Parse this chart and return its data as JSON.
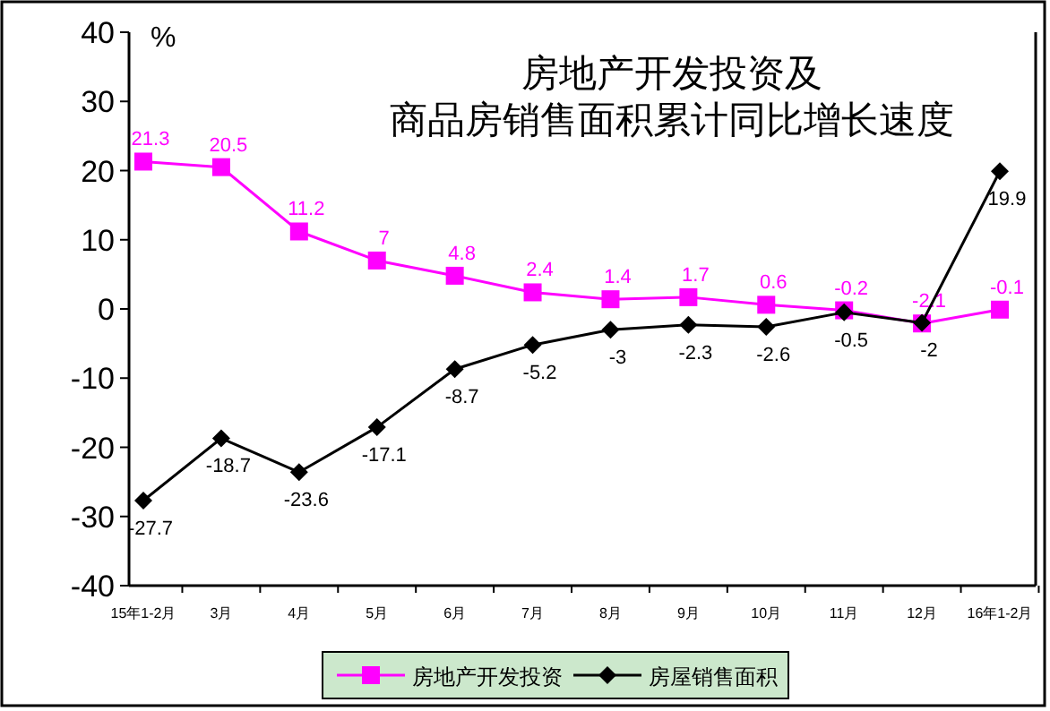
{
  "chart_data": {
    "type": "line",
    "title": "房地产开发投资及",
    "subtitle": "商品房销售面积累计同比增长速度",
    "ylabel": "%",
    "categories": [
      "15年1-2月",
      "3月",
      "4月",
      "5月",
      "6月",
      "7月",
      "8月",
      "9月",
      "10月",
      "11月",
      "12月",
      "16年1-2月"
    ],
    "series": [
      {
        "name": "房地产开发投资",
        "color": "#ff00ff",
        "marker": "square",
        "values": [
          21.3,
          20.5,
          11.2,
          7,
          4.8,
          2.4,
          1.4,
          1.7,
          0.6,
          -0.2,
          -2.1,
          -0.1
        ]
      },
      {
        "name": "房屋销售面积",
        "color": "#000000",
        "marker": "diamond",
        "values": [
          -27.7,
          -18.7,
          -23.6,
          -17.1,
          -8.7,
          -5.2,
          -3,
          -2.3,
          -2.6,
          -0.5,
          -2,
          19.9
        ]
      }
    ],
    "ylim": [
      -40,
      40
    ],
    "yticks": [
      -40,
      -30,
      -20,
      -10,
      0,
      10,
      20,
      30,
      40
    ],
    "grid": false,
    "legend": "bottom",
    "data_labels": true
  }
}
